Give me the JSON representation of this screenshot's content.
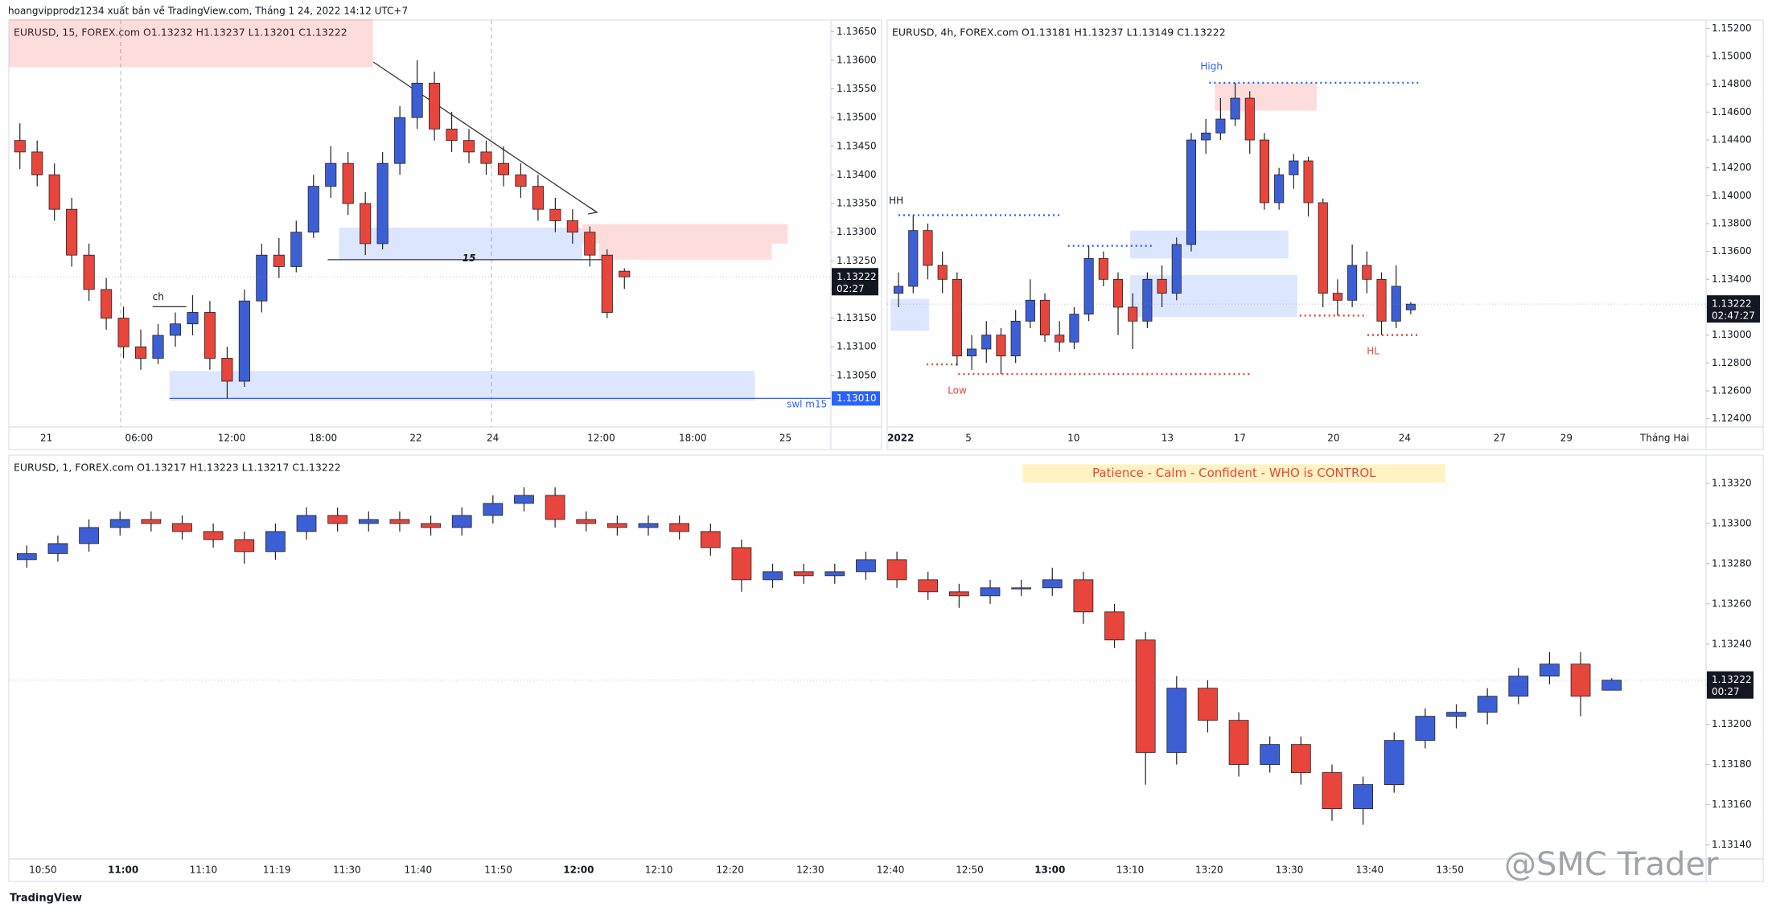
{
  "header": "hoangvipprodz1234 xuất bản về TradingView.com, Tháng 1 24, 2022 14:12 UTC+7",
  "footer": "TradingView",
  "watermark": "@SMC Trader",
  "chart_data": [
    {
      "type": "candlestick",
      "title": "EURUSD, 15, FOREX.com  O1.13232  H1.13237  L1.13201  C1.13222",
      "up_color": "#3d5fd6",
      "down_color": "#e8453c",
      "ylim": [
        1.1296,
        1.1367
      ],
      "yticks": [
        {
          "value": 1.1305,
          "label": "1.13050"
        },
        {
          "value": 1.131,
          "label": "1.13100"
        },
        {
          "value": 1.1315,
          "label": "1.13150"
        },
        {
          "value": 1.132,
          "label": "1.13200"
        },
        {
          "value": 1.1325,
          "label": "1.13250"
        },
        {
          "value": 1.133,
          "label": "1.13300"
        },
        {
          "value": 1.1335,
          "label": "1.13350"
        },
        {
          "value": 1.134,
          "label": "1.13400"
        },
        {
          "value": 1.1345,
          "label": "1.13450"
        },
        {
          "value": 1.135,
          "label": "1.13500"
        },
        {
          "value": 1.1355,
          "label": "1.13550"
        },
        {
          "value": 1.136,
          "label": "1.13600"
        },
        {
          "value": 1.1365,
          "label": "1.13650"
        }
      ],
      "time_labels": [
        "21",
        "06:00",
        "12:00",
        "18:00",
        "22",
        "24",
        "12:00",
        "18:00",
        "25"
      ],
      "candles": [
        [
          1.1346,
          1.1349,
          1.1341,
          1.1344
        ],
        [
          1.1344,
          1.1346,
          1.1338,
          1.134
        ],
        [
          1.134,
          1.1342,
          1.1332,
          1.1334
        ],
        [
          1.1334,
          1.1336,
          1.1324,
          1.1326
        ],
        [
          1.1326,
          1.1328,
          1.1318,
          1.132
        ],
        [
          1.132,
          1.1322,
          1.1313,
          1.1315
        ],
        [
          1.1315,
          1.1317,
          1.1308,
          1.131
        ],
        [
          1.131,
          1.1313,
          1.1306,
          1.1308
        ],
        [
          1.1308,
          1.1314,
          1.1307,
          1.1312
        ],
        [
          1.1312,
          1.1316,
          1.131,
          1.1314
        ],
        [
          1.1314,
          1.1319,
          1.1312,
          1.1316
        ],
        [
          1.1316,
          1.1318,
          1.1306,
          1.1308
        ],
        [
          1.1308,
          1.131,
          1.1301,
          1.1304
        ],
        [
          1.1304,
          1.132,
          1.1303,
          1.1318
        ],
        [
          1.1318,
          1.1328,
          1.1316,
          1.1326
        ],
        [
          1.1326,
          1.1329,
          1.1322,
          1.1324
        ],
        [
          1.1324,
          1.1332,
          1.1323,
          1.133
        ],
        [
          1.133,
          1.134,
          1.1329,
          1.1338
        ],
        [
          1.1338,
          1.1345,
          1.1336,
          1.1342
        ],
        [
          1.1342,
          1.1344,
          1.1333,
          1.1335
        ],
        [
          1.1335,
          1.1337,
          1.1326,
          1.1328
        ],
        [
          1.1328,
          1.1344,
          1.1327,
          1.1342
        ],
        [
          1.1342,
          1.1352,
          1.134,
          1.135
        ],
        [
          1.135,
          1.136,
          1.1348,
          1.1356
        ],
        [
          1.1356,
          1.1358,
          1.1346,
          1.1348
        ],
        [
          1.1348,
          1.1351,
          1.1344,
          1.1346
        ],
        [
          1.1346,
          1.1348,
          1.1342,
          1.1344
        ],
        [
          1.1344,
          1.1346,
          1.134,
          1.1342
        ],
        [
          1.1342,
          1.1345,
          1.1338,
          1.134
        ],
        [
          1.134,
          1.1342,
          1.1336,
          1.1338
        ],
        [
          1.1338,
          1.134,
          1.1332,
          1.1334
        ],
        [
          1.1334,
          1.1336,
          1.133,
          1.1332
        ],
        [
          1.1332,
          1.1334,
          1.1328,
          1.133
        ],
        [
          1.133,
          1.1331,
          1.1324,
          1.1326
        ],
        [
          1.1326,
          1.1327,
          1.1315,
          1.1316
        ],
        [
          1.13232,
          1.13237,
          1.13201,
          1.13222
        ]
      ],
      "zones": [
        {
          "range": [
            1.13588,
            1.13672
          ],
          "color": "rgba(244,67,54,0.18)"
        },
        {
          "range": [
            1.13252,
            1.13308
          ],
          "color": "rgba(41,98,255,0.16)"
        },
        {
          "range": [
            1.1328,
            1.13314
          ],
          "color": "rgba(244,67,54,0.18)"
        },
        {
          "range": [
            1.13252,
            1.1328
          ],
          "color": "rgba(244,67,54,0.18)"
        },
        {
          "range": [
            1.13006,
            1.13058
          ],
          "color": "rgba(41,98,255,0.16)"
        }
      ],
      "levels": [
        {
          "value": 1.1301,
          "color": "#2962ff",
          "dash": false
        },
        {
          "value": 1.13252,
          "color": "#333333",
          "dash": false
        },
        {
          "value": 1.1317,
          "color": "#333333",
          "dash": false
        }
      ],
      "axis_label": {
        "value": 1.1301,
        "label": "1.13010"
      },
      "notes": [
        "ch",
        "15",
        "swl m15"
      ],
      "price": 1.13222,
      "countdown": "02:27"
    },
    {
      "type": "candlestick",
      "title": "EURUSD, 4h, FOREX.com  O1.13181  H1.13237  L1.13149  C1.13222",
      "up_color": "#3d5fd6",
      "down_color": "#e8453c",
      "ylim": [
        1.1234,
        1.1526
      ],
      "yticks": [
        {
          "value": 1.124,
          "label": "1.12400"
        },
        {
          "value": 1.126,
          "label": "1.12600"
        },
        {
          "value": 1.128,
          "label": "1.12800"
        },
        {
          "value": 1.13,
          "label": "1.13000"
        },
        {
          "value": 1.132,
          "label": "1.13200"
        },
        {
          "value": 1.134,
          "label": "1.13400"
        },
        {
          "value": 1.136,
          "label": "1.13600"
        },
        {
          "value": 1.138,
          "label": "1.13800"
        },
        {
          "value": 1.14,
          "label": "1.14000"
        },
        {
          "value": 1.142,
          "label": "1.14200"
        },
        {
          "value": 1.144,
          "label": "1.14400"
        },
        {
          "value": 1.146,
          "label": "1.14600"
        },
        {
          "value": 1.148,
          "label": "1.14800"
        },
        {
          "value": 1.15,
          "label": "1.15000"
        },
        {
          "value": 1.152,
          "label": "1.15200"
        }
      ],
      "time_labels": [
        "2022",
        "5",
        "10",
        "13",
        "17",
        "20",
        "24",
        "27",
        "29",
        "Tháng Hai"
      ],
      "candles": [
        [
          1.133,
          1.1345,
          1.132,
          1.1335
        ],
        [
          1.1335,
          1.1386,
          1.133,
          1.1375
        ],
        [
          1.1375,
          1.138,
          1.134,
          1.135
        ],
        [
          1.135,
          1.136,
          1.133,
          1.134
        ],
        [
          1.134,
          1.1345,
          1.1278,
          1.1285
        ],
        [
          1.1285,
          1.13,
          1.1275,
          1.129
        ],
        [
          1.129,
          1.131,
          1.128,
          1.13
        ],
        [
          1.13,
          1.1305,
          1.1272,
          1.1285
        ],
        [
          1.1285,
          1.1318,
          1.128,
          1.131
        ],
        [
          1.131,
          1.134,
          1.1305,
          1.1325
        ],
        [
          1.1325,
          1.133,
          1.1295,
          1.13
        ],
        [
          1.13,
          1.131,
          1.1288,
          1.1295
        ],
        [
          1.1295,
          1.132,
          1.129,
          1.1315
        ],
        [
          1.1315,
          1.1364,
          1.131,
          1.1355
        ],
        [
          1.1355,
          1.136,
          1.1335,
          1.134
        ],
        [
          1.134,
          1.1345,
          1.13,
          1.132
        ],
        [
          1.132,
          1.133,
          1.129,
          1.131
        ],
        [
          1.131,
          1.1345,
          1.1305,
          1.134
        ],
        [
          1.134,
          1.135,
          1.132,
          1.133
        ],
        [
          1.133,
          1.137,
          1.1325,
          1.1365
        ],
        [
          1.1365,
          1.1445,
          1.136,
          1.144
        ],
        [
          1.144,
          1.1455,
          1.143,
          1.1445
        ],
        [
          1.1445,
          1.147,
          1.144,
          1.1455
        ],
        [
          1.1455,
          1.1481,
          1.145,
          1.147
        ],
        [
          1.147,
          1.1475,
          1.143,
          1.144
        ],
        [
          1.144,
          1.1445,
          1.139,
          1.1395
        ],
        [
          1.1395,
          1.142,
          1.139,
          1.1415
        ],
        [
          1.1415,
          1.143,
          1.1405,
          1.1425
        ],
        [
          1.1425,
          1.1428,
          1.1385,
          1.1395
        ],
        [
          1.1395,
          1.1398,
          1.132,
          1.133
        ],
        [
          1.133,
          1.134,
          1.1314,
          1.1325
        ],
        [
          1.1325,
          1.1365,
          1.132,
          1.135
        ],
        [
          1.135,
          1.136,
          1.133,
          1.134
        ],
        [
          1.134,
          1.1345,
          1.13,
          1.131
        ],
        [
          1.131,
          1.135,
          1.1305,
          1.1335
        ],
        [
          1.13181,
          1.13237,
          1.13149,
          1.13222
        ]
      ],
      "zones": [
        {
          "range": [
            1.1461,
            1.1481
          ],
          "color": "rgba(244,67,54,0.18)"
        },
        {
          "range": [
            1.1355,
            1.1375
          ],
          "color": "rgba(41,98,255,0.16)"
        },
        {
          "range": [
            1.1313,
            1.1343
          ],
          "color": "rgba(41,98,255,0.16)"
        },
        {
          "range": [
            1.1303,
            1.1326
          ],
          "color": "rgba(41,98,255,0.16)"
        }
      ],
      "levels": [
        {
          "value": 1.1386,
          "color": "#2962ff",
          "dash": true
        },
        {
          "value": 1.1364,
          "color": "#2962ff",
          "dash": true
        },
        {
          "value": 1.1481,
          "color": "#2962ff",
          "dash": true
        },
        {
          "value": 1.1272,
          "color": "#e8453c",
          "dash": true
        },
        {
          "value": 1.1279,
          "color": "#e8453c",
          "dash": true
        },
        {
          "value": 1.1314,
          "color": "#e8453c",
          "dash": true
        },
        {
          "value": 1.13,
          "color": "#e8453c",
          "dash": true
        }
      ],
      "notes": [
        "HH",
        "High",
        "Low",
        "HL"
      ],
      "price": 1.13222,
      "countdown": "02:47:27"
    },
    {
      "type": "candlestick",
      "title": "EURUSD, 1, FOREX.com  O1.13217  H1.13223  L1.13217  C1.13222",
      "up_color": "#3d5fd6",
      "down_color": "#e8453c",
      "ylim": [
        1.13133,
        1.13334
      ],
      "yticks": [
        {
          "value": 1.1314,
          "label": "1.13140"
        },
        {
          "value": 1.1316,
          "label": "1.13160"
        },
        {
          "value": 1.1318,
          "label": "1.13180"
        },
        {
          "value": 1.132,
          "label": "1.13200"
        },
        {
          "value": 1.1322,
          "label": "1.13220"
        },
        {
          "value": 1.1324,
          "label": "1.13240"
        },
        {
          "value": 1.1326,
          "label": "1.13260"
        },
        {
          "value": 1.1328,
          "label": "1.13280"
        },
        {
          "value": 1.133,
          "label": "1.13300"
        },
        {
          "value": 1.1332,
          "label": "1.13320"
        }
      ],
      "time_labels": [
        "10:50",
        "11:00",
        "11:10",
        "11:19",
        "11:30",
        "11:40",
        "11:50",
        "12:00",
        "12:10",
        "12:20",
        "12:30",
        "12:40",
        "12:50",
        "13:00",
        "13:10",
        "13:20",
        "13:30",
        "13:40",
        "13:50"
      ],
      "candles": [
        [
          1.13282,
          1.13289,
          1.13278,
          1.13285
        ],
        [
          1.13285,
          1.13294,
          1.13281,
          1.1329
        ],
        [
          1.1329,
          1.13302,
          1.13286,
          1.13298
        ],
        [
          1.13298,
          1.13306,
          1.13294,
          1.13302
        ],
        [
          1.13302,
          1.13306,
          1.13296,
          1.133
        ],
        [
          1.133,
          1.13304,
          1.13292,
          1.13296
        ],
        [
          1.13296,
          1.133,
          1.13288,
          1.13292
        ],
        [
          1.13292,
          1.13296,
          1.1328,
          1.13286
        ],
        [
          1.13286,
          1.133,
          1.13282,
          1.13296
        ],
        [
          1.13296,
          1.13308,
          1.13292,
          1.13304
        ],
        [
          1.13304,
          1.13308,
          1.13296,
          1.133
        ],
        [
          1.133,
          1.13306,
          1.13296,
          1.13302
        ],
        [
          1.13302,
          1.13306,
          1.13296,
          1.133
        ],
        [
          1.133,
          1.13304,
          1.13294,
          1.13298
        ],
        [
          1.13298,
          1.13308,
          1.13294,
          1.13304
        ],
        [
          1.13304,
          1.13314,
          1.133,
          1.1331
        ],
        [
          1.1331,
          1.13318,
          1.13306,
          1.13314
        ],
        [
          1.13314,
          1.13318,
          1.13298,
          1.13302
        ],
        [
          1.13302,
          1.13306,
          1.13296,
          1.133
        ],
        [
          1.133,
          1.13304,
          1.13294,
          1.13298
        ],
        [
          1.13298,
          1.13304,
          1.13294,
          1.133
        ],
        [
          1.133,
          1.13304,
          1.13292,
          1.13296
        ],
        [
          1.13296,
          1.133,
          1.13284,
          1.13288
        ],
        [
          1.13288,
          1.13292,
          1.13266,
          1.13272
        ],
        [
          1.13272,
          1.1328,
          1.13268,
          1.13276
        ],
        [
          1.13276,
          1.1328,
          1.1327,
          1.13274
        ],
        [
          1.13274,
          1.1328,
          1.1327,
          1.13276
        ],
        [
          1.13276,
          1.13286,
          1.13272,
          1.13282
        ],
        [
          1.13282,
          1.13286,
          1.13268,
          1.13272
        ],
        [
          1.13272,
          1.13276,
          1.13262,
          1.13266
        ],
        [
          1.13266,
          1.1327,
          1.13258,
          1.13264
        ],
        [
          1.13264,
          1.13272,
          1.1326,
          1.13268
        ],
        [
          1.13268,
          1.13272,
          1.13264,
          1.13268
        ],
        [
          1.13268,
          1.13278,
          1.13264,
          1.13272
        ],
        [
          1.13272,
          1.13276,
          1.1325,
          1.13256
        ],
        [
          1.13256,
          1.1326,
          1.13238,
          1.13242
        ],
        [
          1.13242,
          1.13246,
          1.1317,
          1.13186
        ],
        [
          1.13186,
          1.13224,
          1.1318,
          1.13218
        ],
        [
          1.13218,
          1.13222,
          1.13196,
          1.13202
        ],
        [
          1.13202,
          1.13206,
          1.13174,
          1.1318
        ],
        [
          1.1318,
          1.13194,
          1.13176,
          1.1319
        ],
        [
          1.1319,
          1.13194,
          1.1317,
          1.13176
        ],
        [
          1.13176,
          1.1318,
          1.13152,
          1.13158
        ],
        [
          1.13158,
          1.13174,
          1.1315,
          1.1317
        ],
        [
          1.1317,
          1.13196,
          1.13166,
          1.13192
        ],
        [
          1.13192,
          1.13208,
          1.13188,
          1.13204
        ],
        [
          1.13204,
          1.1321,
          1.13198,
          1.13206
        ],
        [
          1.13206,
          1.13218,
          1.132,
          1.13214
        ],
        [
          1.13214,
          1.13228,
          1.1321,
          1.13224
        ],
        [
          1.13224,
          1.13236,
          1.1322,
          1.1323
        ],
        [
          1.1323,
          1.13236,
          1.13204,
          1.13214
        ],
        [
          1.13217,
          1.13223,
          1.13217,
          1.13222
        ]
      ],
      "zones": [],
      "levels": [],
      "banner": "Patience - Calm - Confident - WHO is CONTROL",
      "notes": [],
      "price": 1.13222,
      "countdown": "00:27"
    }
  ]
}
